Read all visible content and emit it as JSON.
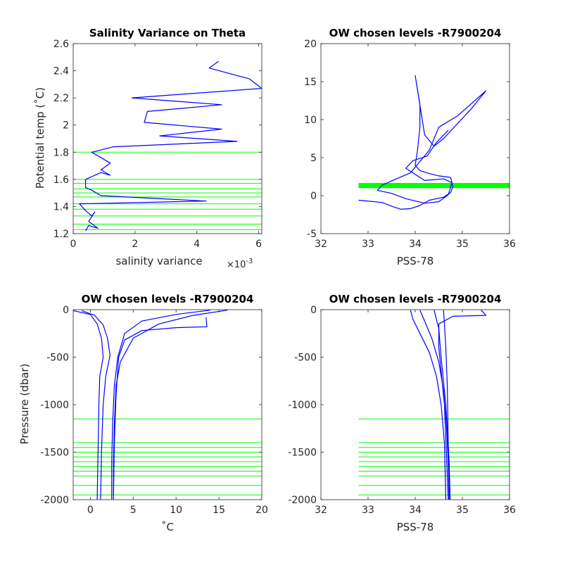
{
  "figure": {
    "background": "#ffffff"
  },
  "colors": {
    "profile": "#0000ff",
    "chosen_level": "#00ff00",
    "axis": "#262626"
  },
  "chart_data": [
    {
      "type": "line",
      "id": "variance",
      "title": "Salinity Variance on Theta",
      "xlabel": "salinity variance",
      "x_exponent_label": "×10",
      "x_exponent_power": "-3",
      "ylabel": "Potential temp (˚C)",
      "xlim": [
        0,
        0.0061
      ],
      "ylim": [
        1.2,
        2.6
      ],
      "xticks": [
        0,
        0.002,
        0.004,
        0.006
      ],
      "xticklabels": [
        "0",
        "2",
        "4",
        "6"
      ],
      "yticks": [
        1.2,
        1.4,
        1.6,
        1.8,
        2.0,
        2.2,
        2.4,
        2.6
      ],
      "yticklabels": [
        "1.2",
        "1.4",
        "1.6",
        "1.8",
        "2",
        "2.2",
        "2.4",
        "2.6"
      ],
      "grid": false,
      "series": [
        {
          "color": "#0000ff",
          "points": [
            [
              0.0047,
              2.47
            ],
            [
              0.0044,
              2.42
            ],
            [
              0.0057,
              2.34
            ],
            [
              0.0061,
              2.27
            ],
            [
              0.0019,
              2.2
            ],
            [
              0.0048,
              2.15
            ],
            [
              0.0024,
              2.1
            ],
            [
              0.0023,
              2.02
            ],
            [
              0.0048,
              1.97
            ],
            [
              0.0028,
              1.92
            ],
            [
              0.0053,
              1.88
            ],
            [
              0.0013,
              1.84
            ],
            [
              0.0006,
              1.8
            ],
            [
              0.0012,
              1.72
            ],
            [
              0.0009,
              1.67
            ],
            [
              0.0012,
              1.63
            ],
            [
              0.0009,
              1.65
            ],
            [
              0.0004,
              1.6
            ],
            [
              0.0004,
              1.54
            ],
            [
              0.0006,
              1.52
            ],
            [
              0.0009,
              1.48
            ],
            [
              0.0043,
              1.44
            ],
            [
              0.0002,
              1.42
            ],
            [
              0.0004,
              1.37
            ],
            [
              0.0006,
              1.33
            ],
            [
              0.0007,
              1.36
            ],
            [
              0.0005,
              1.29
            ],
            [
              0.0008,
              1.24
            ],
            [
              0.0005,
              1.26
            ],
            [
              0.0004,
              1.22
            ]
          ]
        }
      ],
      "hlines": [
        1.8,
        1.6,
        1.57,
        1.53,
        1.5,
        1.47,
        1.42,
        1.38,
        1.33,
        1.27,
        1.23
      ],
      "hline_xrange": [
        0,
        0.0061
      ]
    },
    {
      "type": "scatter",
      "id": "ts",
      "title": "OW chosen levels -R7900204",
      "xlabel": "PSS-78",
      "ylabel": "",
      "xlim": [
        32,
        36
      ],
      "ylim": [
        -5,
        20
      ],
      "xticks": [
        32,
        33,
        34,
        35,
        36
      ],
      "xticklabels": [
        "32",
        "33",
        "34",
        "35",
        "36"
      ],
      "yticks": [
        -5,
        0,
        5,
        10,
        15,
        20
      ],
      "yticklabels": [
        "-5",
        "0",
        "5",
        "10",
        "15",
        "20"
      ],
      "grid": false,
      "series": [
        {
          "color": "#0000ff",
          "points": [
            [
              32.8,
              -0.6
            ],
            [
              33.3,
              -0.9
            ],
            [
              33.5,
              -1.4
            ],
            [
              33.7,
              -1.8
            ],
            [
              33.9,
              -1.7
            ],
            [
              34.1,
              -1.3
            ],
            [
              34.3,
              -0.6
            ],
            [
              34.6,
              -0.2
            ],
            [
              34.75,
              0.4
            ],
            [
              34.8,
              1.2
            ],
            [
              34.75,
              2.4
            ],
            [
              34.5,
              2.6
            ],
            [
              34.3,
              2.9
            ],
            [
              34.1,
              3.3
            ],
            [
              34.0,
              4.0
            ],
            [
              34.05,
              6.0
            ],
            [
              34.1,
              9.0
            ],
            [
              34.1,
              12.0
            ],
            [
              34.0,
              15.8
            ],
            [
              34.2,
              8.0
            ],
            [
              34.4,
              6.5
            ],
            [
              34.6,
              7.5
            ],
            [
              34.9,
              9.5
            ],
            [
              35.2,
              11.5
            ],
            [
              35.5,
              13.8
            ],
            [
              34.9,
              10.5
            ],
            [
              34.5,
              9.0
            ],
            [
              34.3,
              6.0
            ],
            [
              33.9,
              3.0
            ],
            [
              33.6,
              2.2
            ],
            [
              33.3,
              1.4
            ],
            [
              33.2,
              0.7
            ],
            [
              33.5,
              0.3
            ],
            [
              33.8,
              -0.4
            ],
            [
              34.2,
              -1.0
            ],
            [
              34.5,
              -0.8
            ],
            [
              34.7,
              0.1
            ],
            [
              34.78,
              1.7
            ],
            [
              34.6,
              2.2
            ],
            [
              34.2,
              2.0
            ],
            [
              33.8,
              3.6
            ],
            [
              33.95,
              4.6
            ],
            [
              34.25,
              5.2
            ],
            [
              34.45,
              7.0
            ],
            [
              34.7,
              8.6
            ]
          ]
        }
      ],
      "hlines": [
        1.6,
        1.5,
        1.45,
        1.4,
        1.35,
        1.3,
        1.25,
        1.2,
        1.15,
        1.1,
        1.05
      ],
      "hline_xrange": [
        32.8,
        36
      ]
    },
    {
      "type": "line",
      "id": "temp_pressure",
      "title": "OW chosen levels -R7900204",
      "xlabel": "˚C",
      "ylabel": "Pressure (dbar)",
      "xlim": [
        -2,
        20
      ],
      "ylim": [
        -2000,
        0
      ],
      "xticks": [
        0,
        5,
        10,
        15,
        20
      ],
      "xticklabels": [
        "0",
        "5",
        "10",
        "15",
        "20"
      ],
      "yticks": [
        -2000,
        -1500,
        -1000,
        -500,
        0
      ],
      "yticklabels": [
        "-2000",
        "-1500",
        "-1000",
        "-500",
        "0"
      ],
      "grid": false,
      "series": [
        {
          "color": "#0000ff",
          "points": [
            [
              -2,
              -10
            ],
            [
              0,
              -50
            ],
            [
              0.8,
              -150
            ],
            [
              1.3,
              -300
            ],
            [
              1.5,
              -500
            ],
            [
              1.1,
              -700
            ],
            [
              1.0,
              -1000
            ],
            [
              0.9,
              -1500
            ],
            [
              0.8,
              -2000
            ]
          ]
        },
        {
          "color": "#0000ff",
          "points": [
            [
              -1,
              -10
            ],
            [
              0.5,
              -60
            ],
            [
              1.5,
              -160
            ],
            [
              2.0,
              -300
            ],
            [
              2.3,
              -480
            ],
            [
              1.8,
              -700
            ],
            [
              1.5,
              -1000
            ],
            [
              1.3,
              -1500
            ],
            [
              1.2,
              -2000
            ]
          ]
        },
        {
          "color": "#0000ff",
          "points": [
            [
              14,
              -5
            ],
            [
              10,
              -50
            ],
            [
              6,
              -120
            ],
            [
              4,
              -250
            ],
            [
              3.2,
              -500
            ],
            [
              2.8,
              -800
            ],
            [
              2.6,
              -1200
            ],
            [
              2.5,
              -1600
            ],
            [
              2.5,
              -2000
            ]
          ]
        },
        {
          "color": "#0000ff",
          "points": [
            [
              16,
              -5
            ],
            [
              12,
              -60
            ],
            [
              8,
              -150
            ],
            [
              5,
              -300
            ],
            [
              3.5,
              -550
            ],
            [
              3.0,
              -800
            ],
            [
              2.8,
              -1200
            ],
            [
              2.7,
              -1600
            ],
            [
              2.7,
              -2000
            ]
          ]
        },
        {
          "color": "#0000ff",
          "points": [
            [
              13.5,
              -80
            ],
            [
              13.6,
              -180
            ],
            [
              10,
              -190
            ],
            [
              6,
              -220
            ],
            [
              4,
              -320
            ],
            [
              3.3,
              -500
            ],
            [
              3.0,
              -900
            ],
            [
              2.8,
              -1400
            ],
            [
              2.7,
              -1950
            ]
          ]
        }
      ],
      "hlines": [
        -1150,
        -1400,
        -1450,
        -1500,
        -1550,
        -1600,
        -1650,
        -1700,
        -1750,
        -1850,
        -1950
      ],
      "hline_xrange": [
        -2,
        20
      ]
    },
    {
      "type": "line",
      "id": "sal_pressure",
      "title": "OW chosen levels -R7900204",
      "xlabel": "PSS-78",
      "ylabel": "",
      "xlim": [
        32,
        36
      ],
      "ylim": [
        -2000,
        0
      ],
      "xticks": [
        32,
        33,
        34,
        35,
        36
      ],
      "xticklabels": [
        "32",
        "33",
        "34",
        "35",
        "36"
      ],
      "yticks": [
        -2000,
        -1500,
        -1000,
        -500,
        0
      ],
      "yticklabels": [
        "-2000",
        "-1500",
        "-1000",
        "-500",
        "0"
      ],
      "grid": false,
      "series": [
        {
          "color": "#0000ff",
          "points": [
            [
              33.9,
              -5
            ],
            [
              33.95,
              -100
            ],
            [
              34.1,
              -250
            ],
            [
              34.3,
              -450
            ],
            [
              34.45,
              -700
            ],
            [
              34.55,
              -1000
            ],
            [
              34.62,
              -1400
            ],
            [
              34.65,
              -2000
            ]
          ]
        },
        {
          "color": "#0000ff",
          "points": [
            [
              34.1,
              -5
            ],
            [
              34.2,
              -120
            ],
            [
              34.35,
              -300
            ],
            [
              34.5,
              -550
            ],
            [
              34.6,
              -850
            ],
            [
              34.66,
              -1200
            ],
            [
              34.7,
              -1600
            ],
            [
              34.72,
              -2000
            ]
          ]
        },
        {
          "color": "#0000ff",
          "points": [
            [
              34.6,
              -5
            ],
            [
              34.62,
              -150
            ],
            [
              34.65,
              -400
            ],
            [
              34.68,
              -800
            ],
            [
              34.7,
              -1400
            ],
            [
              34.74,
              -2000
            ]
          ]
        },
        {
          "color": "#0000ff",
          "points": [
            [
              35.4,
              -5
            ],
            [
              35.5,
              -60
            ],
            [
              34.8,
              -70
            ],
            [
              34.5,
              -150
            ],
            [
              34.5,
              -400
            ],
            [
              34.62,
              -1000
            ],
            [
              34.7,
              -2000
            ]
          ]
        },
        {
          "color": "#0000ff",
          "points": [
            [
              34.4,
              -5
            ],
            [
              34.5,
              -200
            ],
            [
              34.55,
              -500
            ],
            [
              34.65,
              -1000
            ],
            [
              34.72,
              -1600
            ],
            [
              34.74,
              -2000
            ]
          ]
        }
      ],
      "hlines": [
        -1150,
        -1400,
        -1450,
        -1500,
        -1550,
        -1600,
        -1650,
        -1700,
        -1750,
        -1850,
        -1950
      ],
      "hline_xrange": [
        32.8,
        36
      ]
    }
  ]
}
